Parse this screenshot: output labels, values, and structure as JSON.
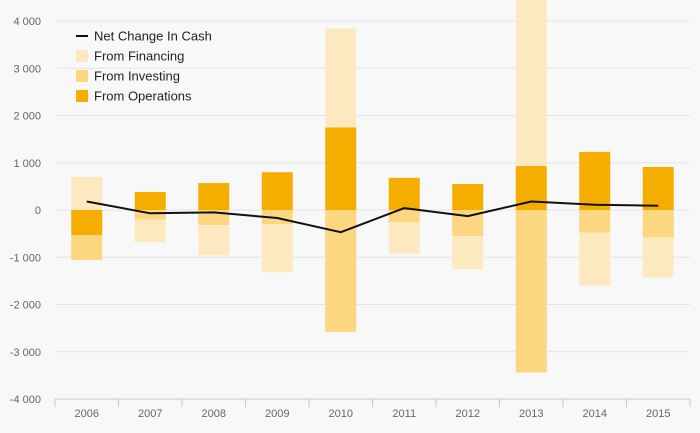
{
  "chart_data": {
    "type": "bar",
    "stacked": true,
    "categories": [
      "2006",
      "2007",
      "2008",
      "2009",
      "2010",
      "2011",
      "2012",
      "2013",
      "2014",
      "2015"
    ],
    "ylim": [
      -4000,
      4000
    ],
    "yticks": [
      {
        "value": 4000,
        "label": "4 000"
      },
      {
        "value": 3000,
        "label": "3 000"
      },
      {
        "value": 2000,
        "label": "2 000"
      },
      {
        "value": 1000,
        "label": "1 000"
      },
      {
        "value": 0,
        "label": "0"
      },
      {
        "value": -1000,
        "label": "-1 000"
      },
      {
        "value": -2000,
        "label": "-2 000"
      },
      {
        "value": -3000,
        "label": "-3 000"
      },
      {
        "value": -4000,
        "label": "-4 000"
      }
    ],
    "grid": true,
    "legend_position": "top-left",
    "series": [
      {
        "name": "Net Change In Cash",
        "kind": "line",
        "color": "#111111",
        "values": [
          180,
          -70,
          -50,
          -170,
          -470,
          40,
          -130,
          180,
          110,
          90
        ]
      },
      {
        "name": "From Financing",
        "kind": "bar",
        "color": "#fde9c0",
        "values": [
          700,
          -480,
          -640,
          -1020,
          2090,
          -660,
          -700,
          3560,
          -1120,
          -850
        ]
      },
      {
        "name": "From Investing",
        "kind": "bar",
        "color": "#fcd680",
        "values": [
          -530,
          -200,
          -320,
          -300,
          -2580,
          -260,
          -550,
          -3440,
          -480,
          -580
        ]
      },
      {
        "name": "From Operations",
        "kind": "bar",
        "color": "#f5ad00",
        "values": [
          -530,
          380,
          570,
          800,
          1750,
          680,
          550,
          930,
          1230,
          910
        ]
      }
    ]
  }
}
